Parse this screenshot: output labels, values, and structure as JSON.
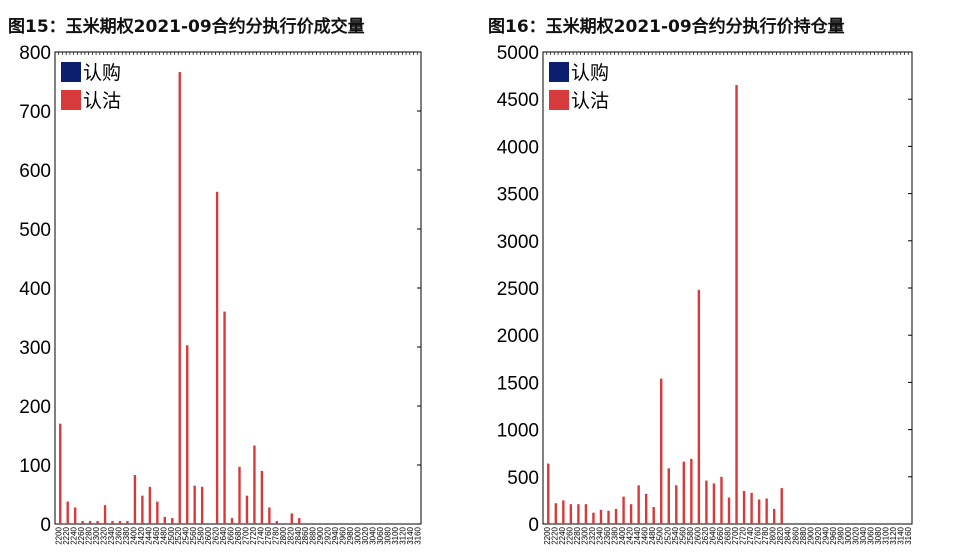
{
  "colors": {
    "call": "#0b1f6e",
    "put": "#d63a3a",
    "axis": "#000000"
  },
  "chart_data": [
    {
      "type": "bar",
      "title": "图15：玉米期权2021-09合约分执行价成交量",
      "ylim": [
        0,
        800
      ],
      "yticks": [
        "0",
        "100",
        "200",
        "300",
        "400",
        "500",
        "600",
        "700",
        "800"
      ],
      "categories": [
        "2200",
        "2220",
        "2240",
        "2260",
        "2280",
        "2300",
        "2320",
        "2340",
        "2360",
        "2380",
        "2400",
        "2420",
        "2440",
        "2460",
        "2480",
        "2500",
        "2520",
        "2540",
        "2560",
        "2580",
        "2600",
        "2620",
        "2640",
        "2660",
        "2680",
        "2700",
        "2720",
        "2740",
        "2760",
        "2780",
        "2800",
        "2820",
        "2840",
        "2860",
        "2880",
        "2900",
        "2920",
        "2940",
        "2960",
        "2980",
        "3000",
        "3020",
        "3040",
        "3060",
        "3080",
        "3100",
        "3120",
        "3140",
        "3160"
      ],
      "series": [
        {
          "name": "认购",
          "color_key": "call",
          "values": [
            0,
            0,
            0,
            0,
            0,
            0,
            0,
            0,
            0,
            0,
            0,
            0,
            0,
            0,
            0,
            0,
            0,
            0,
            0,
            0,
            0,
            0,
            0,
            0,
            0,
            0,
            0,
            0,
            0,
            0,
            0,
            0,
            0,
            0,
            0,
            0,
            0,
            0,
            0,
            0,
            0,
            0,
            0,
            0,
            0,
            0,
            0,
            0,
            0
          ]
        },
        {
          "name": "认沽",
          "color_key": "put",
          "values": [
            170,
            38,
            28,
            5,
            5,
            5,
            32,
            5,
            5,
            5,
            83,
            48,
            63,
            38,
            12,
            10,
            766,
            303,
            65,
            63,
            0,
            563,
            360,
            10,
            97,
            48,
            133,
            90,
            28,
            5,
            0,
            18,
            10,
            0,
            0,
            0,
            0,
            0,
            0,
            0,
            0,
            0,
            0,
            0,
            0,
            0,
            0,
            0,
            0
          ]
        }
      ]
    },
    {
      "type": "bar",
      "title": "图16：玉米期权2021-09合约分执行价持仓量",
      "ylim": [
        0,
        5000
      ],
      "yticks": [
        "0",
        "500",
        "1000",
        "1500",
        "2000",
        "2500",
        "3000",
        "3500",
        "4000",
        "4500",
        "5000"
      ],
      "categories": [
        "2200",
        "2220",
        "2240",
        "2260",
        "2280",
        "2300",
        "2320",
        "2340",
        "2360",
        "2380",
        "2400",
        "2420",
        "2440",
        "2460",
        "2480",
        "2500",
        "2520",
        "2540",
        "2560",
        "2580",
        "2600",
        "2620",
        "2640",
        "2660",
        "2680",
        "2700",
        "2720",
        "2740",
        "2760",
        "2780",
        "2800",
        "2820",
        "2840",
        "2860",
        "2880",
        "2900",
        "2920",
        "2940",
        "2960",
        "2980",
        "3000",
        "3020",
        "3040",
        "3060",
        "3080",
        "3100",
        "3120",
        "3140",
        "3160"
      ],
      "series": [
        {
          "name": "认购",
          "color_key": "call",
          "values": [
            0,
            0,
            0,
            0,
            0,
            0,
            0,
            0,
            0,
            0,
            0,
            0,
            0,
            0,
            0,
            0,
            0,
            0,
            0,
            0,
            0,
            0,
            0,
            0,
            0,
            0,
            0,
            0,
            0,
            0,
            0,
            0,
            0,
            0,
            0,
            0,
            0,
            0,
            0,
            0,
            0,
            0,
            0,
            0,
            0,
            0,
            0,
            0,
            0
          ]
        },
        {
          "name": "认沽",
          "color_key": "put",
          "values": [
            640,
            220,
            250,
            210,
            210,
            210,
            120,
            150,
            140,
            160,
            290,
            210,
            410,
            320,
            180,
            1540,
            590,
            410,
            660,
            690,
            2480,
            460,
            430,
            500,
            280,
            4650,
            350,
            330,
            260,
            270,
            160,
            380,
            0,
            0,
            0,
            0,
            0,
            0,
            0,
            0,
            0,
            0,
            0,
            0,
            0,
            0,
            0,
            0,
            0
          ]
        }
      ]
    }
  ]
}
